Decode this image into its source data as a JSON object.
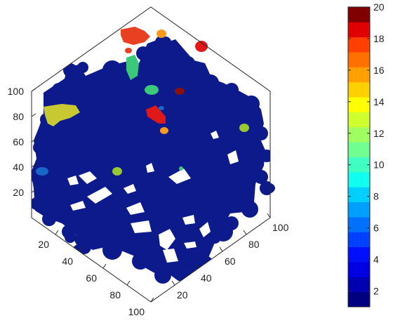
{
  "chart_data": {
    "type": "scatter",
    "title": "",
    "xlabel": "",
    "ylabel": "",
    "zlabel": "",
    "view": "isometric",
    "grid": false,
    "axes": {
      "x": {
        "ticks": [
          20,
          40,
          60,
          80,
          100
        ],
        "range": [
          0,
          100
        ]
      },
      "y": {
        "ticks": [
          20,
          40,
          60,
          80,
          100
        ],
        "range": [
          0,
          100
        ]
      },
      "z": {
        "ticks": [
          20,
          40,
          60,
          80,
          100
        ],
        "range": [
          0,
          100
        ]
      }
    },
    "colorbar": {
      "range": [
        1,
        20
      ],
      "ticks": [
        2,
        4,
        6,
        8,
        10,
        12,
        14,
        16,
        18,
        20
      ],
      "levels": 20,
      "colormap": "jet",
      "colors": [
        "#000080",
        "#0000b0",
        "#0000e0",
        "#0010ff",
        "#0040ff",
        "#0070ff",
        "#00a0ff",
        "#00d0ff",
        "#10fff0",
        "#40ffc0",
        "#70ff90",
        "#a0ff60",
        "#d0ff30",
        "#ffff00",
        "#ffd000",
        "#ffa000",
        "#ff7000",
        "#ff4000",
        "#e00000",
        "#800000"
      ]
    },
    "clusters": [
      {
        "label_value": 1,
        "color": "#0d1a8c",
        "description": "main connected volume"
      },
      {
        "label_value": 2,
        "color": "#1a66c8"
      },
      {
        "label_value": 10,
        "color": "#3cc87a"
      },
      {
        "label_value": 11,
        "color": "#9ac832"
      },
      {
        "label_value": 12,
        "color": "#c8c832"
      },
      {
        "label_value": 14,
        "color": "#ff9a1e"
      },
      {
        "label_value": 16,
        "color": "#e84020"
      },
      {
        "label_value": 18,
        "color": "#e01818"
      },
      {
        "label_value": 19,
        "color": "#8a1010"
      }
    ]
  }
}
